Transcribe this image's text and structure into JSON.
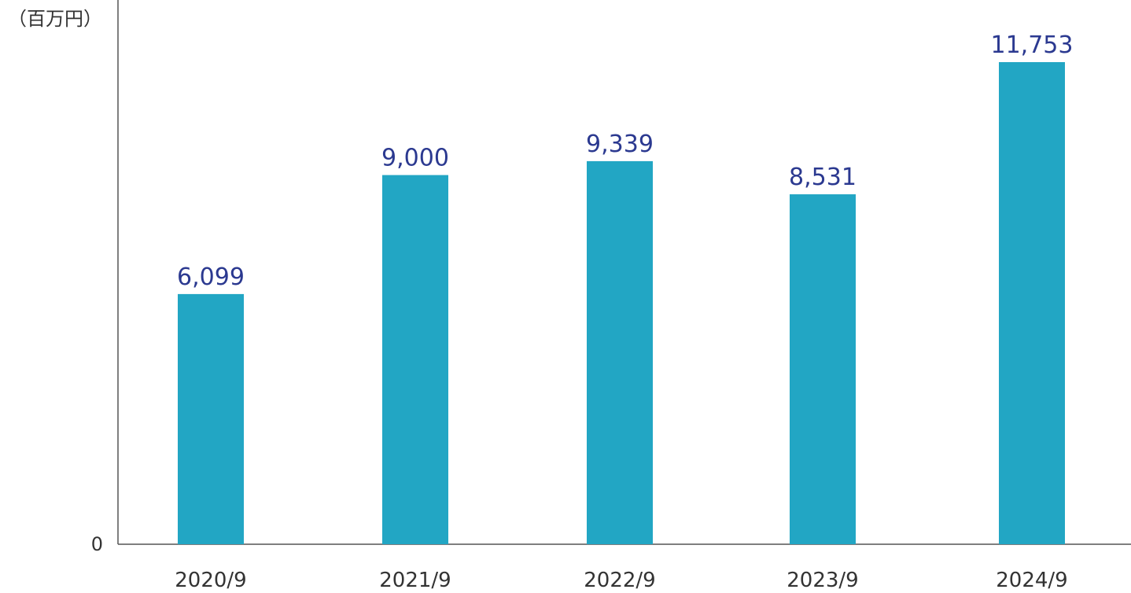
{
  "chart_data": {
    "type": "bar",
    "unit_label": "（百万円）",
    "categories": [
      "2020/9",
      "2021/9",
      "2022/9",
      "2023/9",
      "2024/9"
    ],
    "values": [
      6099,
      9000,
      9339,
      8531,
      11753
    ],
    "value_labels": [
      "6,099",
      "9,000",
      "9,339",
      "8,531",
      "11,753"
    ],
    "y_tick_labels": [
      "0"
    ],
    "ylim": [
      0,
      12000
    ],
    "grid": false,
    "legend": "none",
    "colors": {
      "bar": "#22a6c4",
      "value_label": "#2b3990",
      "axis": "#555555",
      "text": "#333333"
    }
  }
}
